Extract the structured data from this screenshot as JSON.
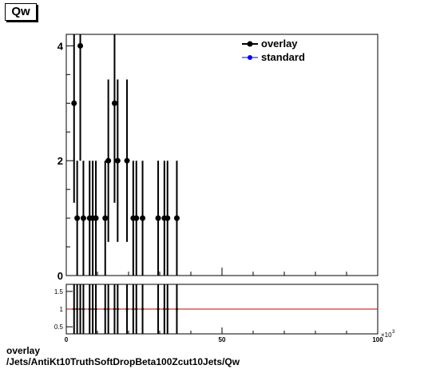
{
  "title": "Qw",
  "footer": {
    "line1": "overlay",
    "line2": "/Jets/AntiKt10TruthSoftDropBeta100Zcut10Jets/Qw"
  },
  "colors": {
    "overlay": "#000000",
    "standard": "#0000ff",
    "ratio_line": "#cc0000"
  },
  "chart_data": [
    {
      "type": "scatter",
      "title": "Qw",
      "xlim": [
        0,
        100
      ],
      "ylim": [
        0,
        4.2
      ],
      "x_multiplier_label": "×10",
      "x_multiplier_exp": "3",
      "yticks": [
        0,
        2,
        4
      ],
      "legend": {
        "placement": "top-right",
        "entries": [
          "overlay",
          "standard"
        ]
      },
      "series": [
        {
          "name": "overlay",
          "marker": "circle",
          "points": [
            {
              "x": 2.5,
              "y": 3
            },
            {
              "x": 3.5,
              "y": 1
            },
            {
              "x": 4.5,
              "y": 4
            },
            {
              "x": 5.5,
              "y": 1
            },
            {
              "x": 7.5,
              "y": 1
            },
            {
              "x": 8.5,
              "y": 1
            },
            {
              "x": 9.5,
              "y": 1
            },
            {
              "x": 12.5,
              "y": 1
            },
            {
              "x": 13.5,
              "y": 2
            },
            {
              "x": 15.5,
              "y": 3
            },
            {
              "x": 16.5,
              "y": 2
            },
            {
              "x": 19.5,
              "y": 2
            },
            {
              "x": 21.5,
              "y": 1
            },
            {
              "x": 22.5,
              "y": 1
            },
            {
              "x": 24.5,
              "y": 1
            },
            {
              "x": 29.5,
              "y": 1
            },
            {
              "x": 31.5,
              "y": 1
            },
            {
              "x": 32.5,
              "y": 1
            },
            {
              "x": 35.5,
              "y": 1
            }
          ]
        },
        {
          "name": "standard",
          "marker": "circle",
          "points": []
        }
      ]
    },
    {
      "type": "scatter",
      "title": "",
      "xlim": [
        0,
        100
      ],
      "ylim": [
        0.3,
        1.7
      ],
      "xticks": [
        0,
        50,
        100
      ],
      "yticks": [
        0.5,
        1,
        1.5
      ],
      "reference_line": 1,
      "series": [
        {
          "name": "ratio",
          "points": [
            {
              "x": 2.5,
              "y": 1
            },
            {
              "x": 3.5,
              "y": 1
            },
            {
              "x": 4.5,
              "y": 1
            },
            {
              "x": 5.5,
              "y": 1
            },
            {
              "x": 7.5,
              "y": 1
            },
            {
              "x": 8.5,
              "y": 1
            },
            {
              "x": 9.5,
              "y": 1
            },
            {
              "x": 12.5,
              "y": 1
            },
            {
              "x": 13.5,
              "y": 1
            },
            {
              "x": 15.5,
              "y": 1
            },
            {
              "x": 16.5,
              "y": 1
            },
            {
              "x": 19.5,
              "y": 1
            },
            {
              "x": 21.5,
              "y": 1
            },
            {
              "x": 22.5,
              "y": 1
            },
            {
              "x": 24.5,
              "y": 1
            },
            {
              "x": 29.5,
              "y": 1
            },
            {
              "x": 31.5,
              "y": 1
            },
            {
              "x": 32.5,
              "y": 1
            },
            {
              "x": 35.5,
              "y": 1
            }
          ]
        }
      ]
    }
  ]
}
